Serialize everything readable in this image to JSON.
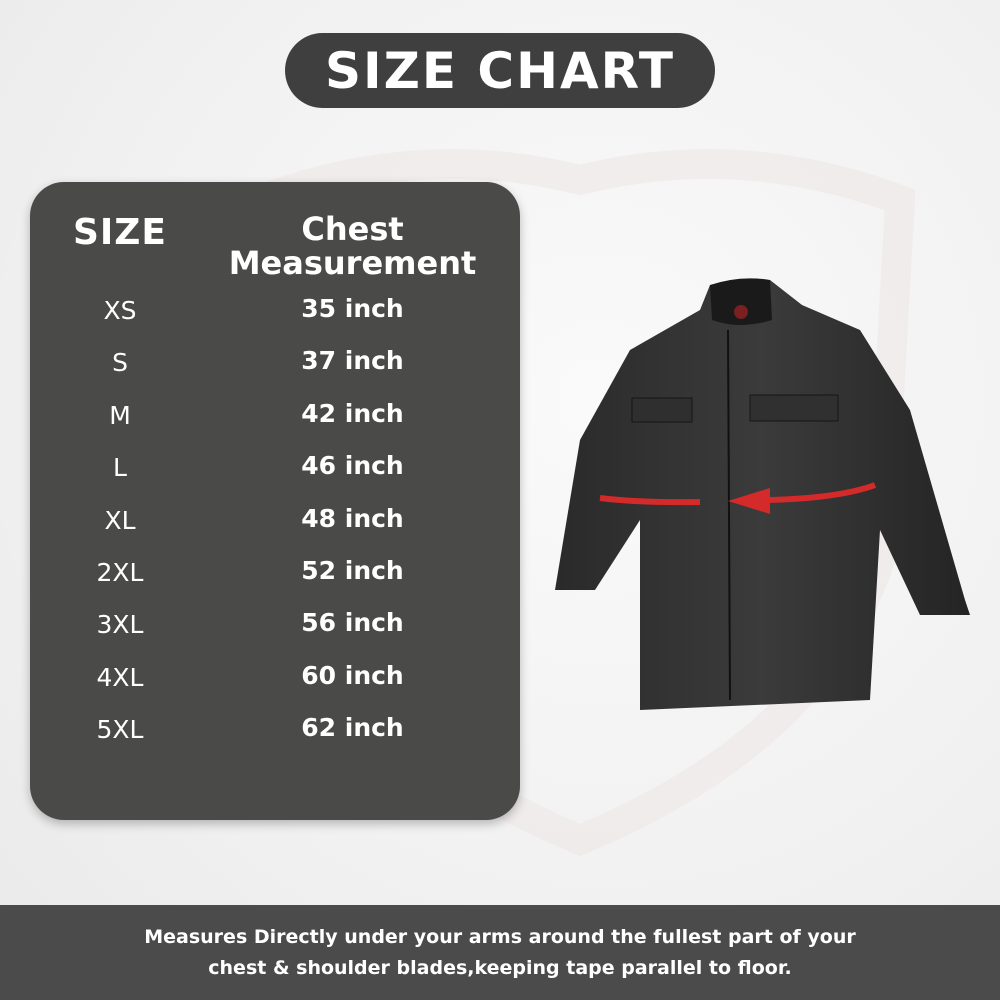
{
  "title": "SIZE CHART",
  "table": {
    "headers": {
      "size": "SIZE",
      "chest_line1": "Chest",
      "chest_line2": "Measurement"
    },
    "rows": [
      {
        "size": "XS",
        "chest": "35 inch"
      },
      {
        "size": "S",
        "chest": "37 inch"
      },
      {
        "size": "M",
        "chest": "42 inch"
      },
      {
        "size": "L",
        "chest": "46 inch"
      },
      {
        "size": "XL",
        "chest": "48 inch"
      },
      {
        "size": "2XL",
        "chest": "52 inch"
      },
      {
        "size": "3XL",
        "chest": "56 inch"
      },
      {
        "size": "4XL",
        "chest": "60 inch"
      },
      {
        "size": "5XL",
        "chest": "62 inch"
      }
    ]
  },
  "footer": {
    "line1": "Measures Directly under your arms around the fullest part of your",
    "line2": "chest & shoulder blades,keeping tape parallel to floor."
  },
  "colors": {
    "panel": "#4a4a48",
    "pill": "#3f3f3f",
    "arrow": "#d42a2a",
    "footer": "#4b4b4b"
  }
}
